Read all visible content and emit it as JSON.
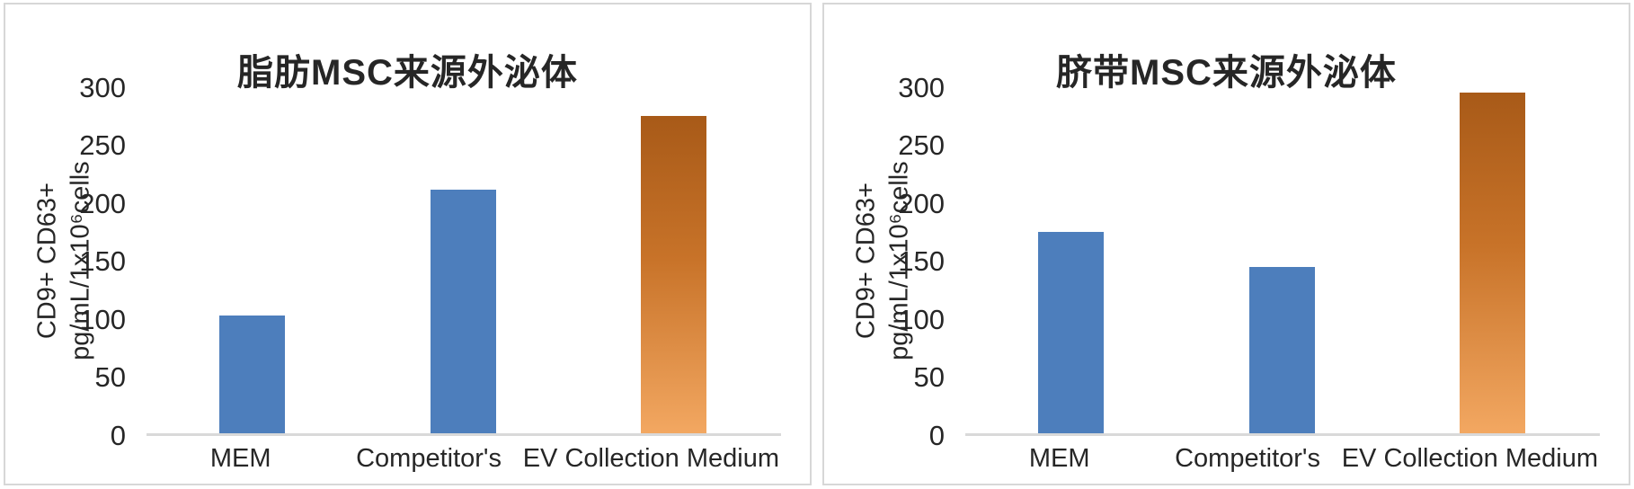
{
  "colors": {
    "bar_blue": "#4d7ebc",
    "bar_orange_top": "#a85a18",
    "bar_orange_bottom": "#f3a862",
    "axis_line": "#d9d9d9",
    "panel_border": "#d7d7d7",
    "text": "#262626"
  },
  "chart_data": [
    {
      "type": "bar",
      "title": "脂肪MSC来源外泌体",
      "categories": [
        "MEM",
        "Competitor's",
        "EV Collection Medium"
      ],
      "values": [
        103,
        212,
        275
      ],
      "bar_styles": [
        "blue",
        "blue",
        "orange-gradient"
      ],
      "ylabel_line1": "CD9+ CD63+",
      "ylabel_line2": "pg/mL/1x10⁶cells",
      "xlabel": "",
      "ylim": [
        0,
        300
      ],
      "yticks": [
        0,
        50,
        100,
        150,
        200,
        250,
        300
      ],
      "grid": false,
      "legend": "none"
    },
    {
      "type": "bar",
      "title": "脐带MSC来源外泌体",
      "categories": [
        "MEM",
        "Competitor's",
        "EV Collection Medium"
      ],
      "values": [
        175,
        145,
        295
      ],
      "bar_styles": [
        "blue",
        "blue",
        "orange-gradient"
      ],
      "ylabel_line1": "CD9+ CD63+",
      "ylabel_line2": "pg/mL/1x10⁶cells",
      "xlabel": "",
      "ylim": [
        0,
        300
      ],
      "yticks": [
        0,
        50,
        100,
        150,
        200,
        250,
        300
      ],
      "grid": false,
      "legend": "none"
    }
  ]
}
